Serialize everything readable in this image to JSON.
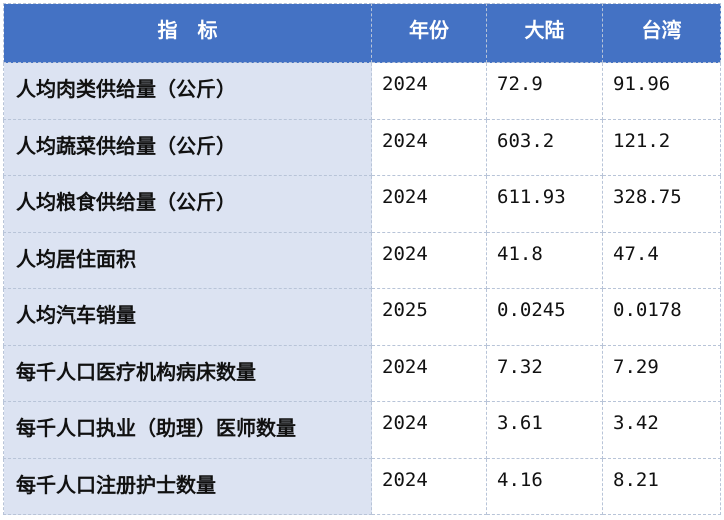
{
  "table": {
    "headers": [
      "指　标",
      "年份",
      "大陆",
      "台湾"
    ],
    "rows": [
      [
        "人均肉类供给量（公斤）",
        "2024",
        "72.9",
        "91.96"
      ],
      [
        "人均蔬菜供给量（公斤）",
        "2024",
        "603.2",
        "121.2"
      ],
      [
        "人均粮食供给量（公斤）",
        "2024",
        "611.93",
        "328.75"
      ],
      [
        "人均居住面积",
        "2024",
        "41.8",
        "47.4"
      ],
      [
        "人均汽车销量",
        "2025",
        "0.0245",
        "0.0178"
      ],
      [
        "每千人口医疗机构病床数量",
        "2024",
        "7.32",
        "7.29"
      ],
      [
        "每千人口执业（助理）医师数量",
        "2024",
        "3.61",
        "3.42"
      ],
      [
        "每千人口注册护士数量",
        "2024",
        "4.16",
        "8.21"
      ]
    ]
  },
  "colors": {
    "header_bg": "#4472c4",
    "indicator_bg": "#dce3f2"
  }
}
